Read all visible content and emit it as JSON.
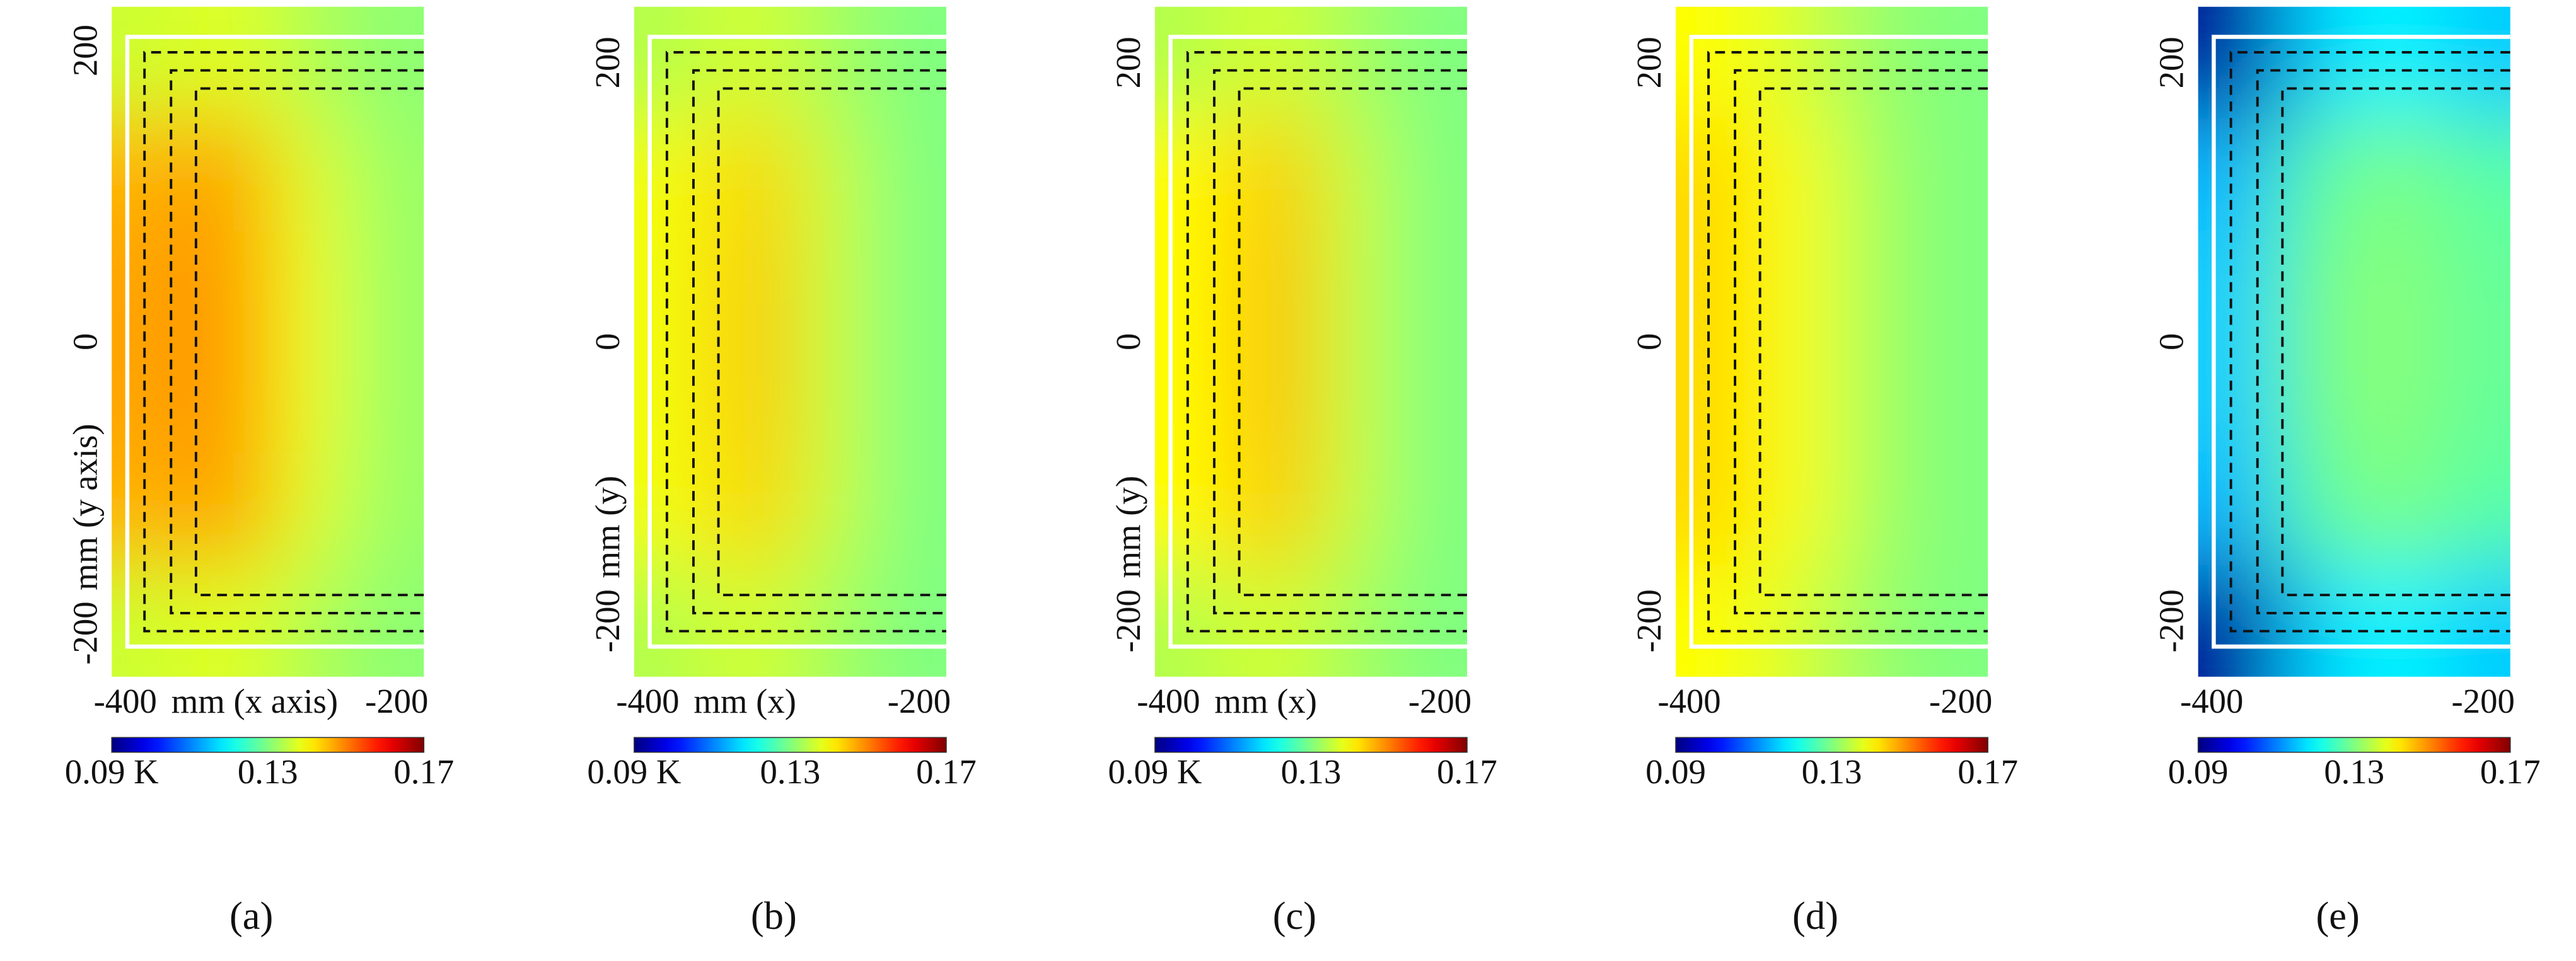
{
  "chart_data": [
    {
      "type": "heatmap",
      "panel_label": "(a)",
      "x_label": "mm (x axis)",
      "y_label": "mm (y axis)",
      "xlim": [
        -410,
        -180
      ],
      "ylim": [
        -230,
        230
      ],
      "xticks": [
        -400,
        -200
      ],
      "yticks": [
        -200,
        0,
        200
      ],
      "colormap": "jet",
      "clim": [
        0.09,
        0.17
      ],
      "cticks": [
        {
          "value": 0.09,
          "label": "0.09 K"
        },
        0.13,
        0.17
      ],
      "values": [
        [
          0.136,
          0.138,
          0.134,
          0.131
        ],
        [
          0.146,
          0.148,
          0.138,
          0.132
        ],
        [
          0.147,
          0.149,
          0.139,
          0.132
        ],
        [
          0.147,
          0.149,
          0.139,
          0.132
        ],
        [
          0.146,
          0.148,
          0.138,
          0.132
        ],
        [
          0.136,
          0.138,
          0.134,
          0.131
        ]
      ]
    },
    {
      "type": "heatmap",
      "panel_label": "(b)",
      "x_label": "mm (x)",
      "y_label": "mm (y)",
      "xlim": [
        -410,
        -180
      ],
      "ylim": [
        -240,
        240
      ],
      "xticks": [
        -400,
        -200
      ],
      "yticks": [
        -200,
        0,
        200
      ],
      "colormap": "jet",
      "clim": [
        0.09,
        0.17
      ],
      "cticks": [
        {
          "value": 0.09,
          "label": "0.09 K"
        },
        0.13,
        0.17
      ],
      "values": [
        [
          0.134,
          0.137,
          0.133,
          0.13
        ],
        [
          0.139,
          0.144,
          0.136,
          0.13
        ],
        [
          0.139,
          0.145,
          0.136,
          0.13
        ],
        [
          0.139,
          0.145,
          0.136,
          0.13
        ],
        [
          0.139,
          0.144,
          0.136,
          0.13
        ],
        [
          0.134,
          0.137,
          0.133,
          0.13
        ]
      ]
    },
    {
      "type": "heatmap",
      "panel_label": "(c)",
      "x_label": "mm (x)",
      "y_label": "mm (y)",
      "xlim": [
        -410,
        -180
      ],
      "ylim": [
        -240,
        240
      ],
      "xticks": [
        -400,
        -200
      ],
      "yticks": [
        -200,
        0,
        200
      ],
      "colormap": "jet",
      "clim": [
        0.09,
        0.17
      ],
      "cticks": [
        {
          "value": 0.09,
          "label": "0.09 K"
        },
        0.13,
        0.17
      ],
      "values": [
        [
          0.134,
          0.137,
          0.133,
          0.13
        ],
        [
          0.14,
          0.145,
          0.136,
          0.13
        ],
        [
          0.14,
          0.146,
          0.136,
          0.13
        ],
        [
          0.14,
          0.146,
          0.136,
          0.13
        ],
        [
          0.14,
          0.145,
          0.136,
          0.13
        ],
        [
          0.134,
          0.137,
          0.133,
          0.13
        ]
      ]
    },
    {
      "type": "heatmap",
      "panel_label": "(d)",
      "xlim": [
        -410,
        -180
      ],
      "ylim": [
        -240,
        240
      ],
      "xticks": [
        -400,
        -200
      ],
      "yticks": [
        -200,
        0,
        200
      ],
      "colormap": "jet",
      "clim": [
        0.09,
        0.17
      ],
      "cticks": [
        0.09,
        0.13,
        0.17
      ],
      "values": [
        [
          0.14,
          0.137,
          0.132,
          0.13
        ],
        [
          0.143,
          0.14,
          0.133,
          0.13
        ],
        [
          0.143,
          0.14,
          0.133,
          0.13
        ],
        [
          0.143,
          0.14,
          0.133,
          0.13
        ],
        [
          0.143,
          0.14,
          0.133,
          0.13
        ],
        [
          0.14,
          0.137,
          0.132,
          0.13
        ]
      ]
    },
    {
      "type": "heatmap",
      "panel_label": "(e)",
      "xlim": [
        -410,
        -180
      ],
      "ylim": [
        -240,
        240
      ],
      "xticks": [
        -400,
        -200
      ],
      "yticks": [
        -200,
        0,
        200
      ],
      "colormap": "jet",
      "clim": [
        0.09,
        0.17
      ],
      "cticks": [
        0.09,
        0.13,
        0.17
      ],
      "values": [
        [
          0.092,
          0.116,
          0.12,
          0.116
        ],
        [
          0.114,
          0.127,
          0.13,
          0.127
        ],
        [
          0.116,
          0.129,
          0.131,
          0.128
        ],
        [
          0.116,
          0.129,
          0.131,
          0.128
        ],
        [
          0.114,
          0.127,
          0.13,
          0.127
        ],
        [
          0.092,
          0.116,
          0.12,
          0.116
        ]
      ]
    }
  ]
}
